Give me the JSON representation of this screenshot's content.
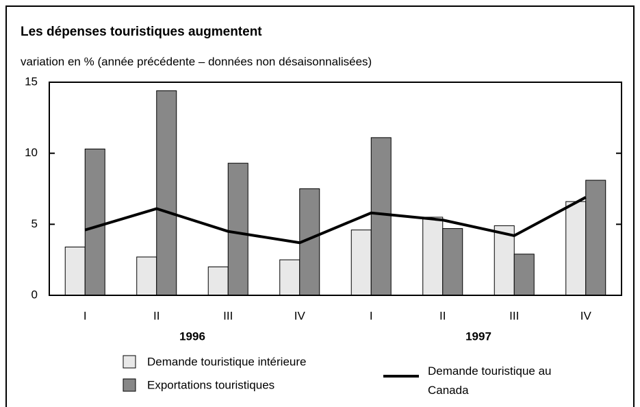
{
  "chart_data": {
    "type": "bar",
    "title": "Les dépenses touristiques augmentent",
    "subtitle": "variation en % (année précédente – données non désaisonnalisées)",
    "categories": [
      "I",
      "II",
      "III",
      "IV",
      "I",
      "II",
      "III",
      "IV"
    ],
    "year_labels": [
      "1996",
      "1997"
    ],
    "series": [
      {
        "name": "Demande touristique intérieure",
        "type": "bar",
        "color": "#e8e8e8",
        "values": [
          3.4,
          2.7,
          2.0,
          2.5,
          4.6,
          5.5,
          4.9,
          6.6
        ]
      },
      {
        "name": "Exportations touristiques",
        "type": "bar",
        "color": "#888888",
        "values": [
          10.3,
          14.4,
          9.3,
          7.5,
          11.1,
          4.7,
          2.9,
          8.1
        ]
      },
      {
        "name": "Demande touristique au Canada",
        "type": "line",
        "color": "#000000",
        "values": [
          4.6,
          6.1,
          4.5,
          3.7,
          5.8,
          5.3,
          4.2,
          6.9
        ]
      }
    ],
    "ylim": [
      0,
      15
    ],
    "yticks": [
      0,
      5,
      10,
      15
    ],
    "grid": false
  }
}
